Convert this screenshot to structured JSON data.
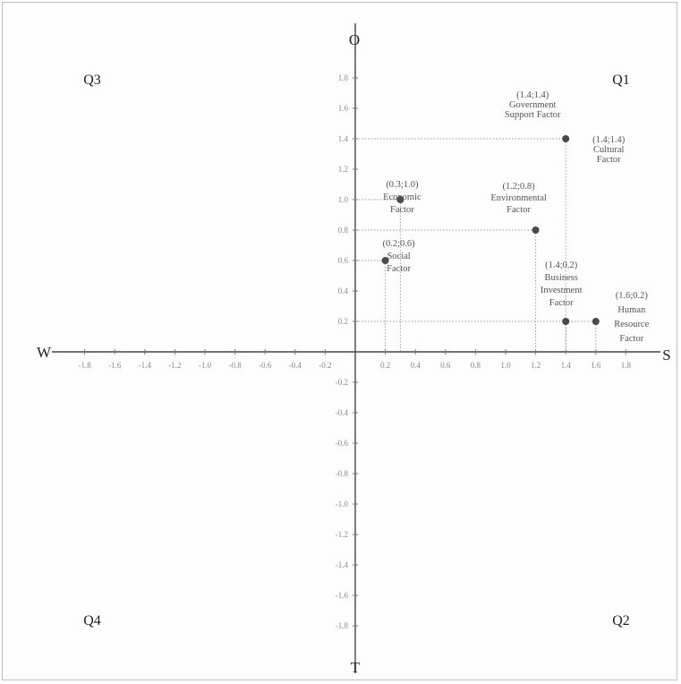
{
  "chart_data": {
    "type": "scatter",
    "title": "",
    "xlim": [
      -1.9,
      2.0
    ],
    "ylim": [
      -2.0,
      2.0
    ],
    "grid": false,
    "directions": {
      "top": "O",
      "bottom": "T",
      "left": "W",
      "right": "S"
    },
    "quadrants": {
      "q1": "Q1",
      "q2": "Q2",
      "q3": "Q3",
      "q4": "Q4"
    },
    "x_ticks": [
      {
        "v": -1.8,
        "t": "-1.8"
      },
      {
        "v": -1.6,
        "t": "-1.6"
      },
      {
        "v": -1.4,
        "t": "-1.4"
      },
      {
        "v": -1.2,
        "t": "-1.2"
      },
      {
        "v": -1.0,
        "t": "-1.0"
      },
      {
        "v": -0.8,
        "t": "-0.8"
      },
      {
        "v": -0.6,
        "t": "-0.6"
      },
      {
        "v": -0.4,
        "t": "-0.4"
      },
      {
        "v": -0.2,
        "t": "-0.2"
      },
      {
        "v": 0.2,
        "t": "0.2"
      },
      {
        "v": 0.4,
        "t": "0.4"
      },
      {
        "v": 0.6,
        "t": "0.6"
      },
      {
        "v": 0.8,
        "t": "0.8"
      },
      {
        "v": 1.0,
        "t": "1.0"
      },
      {
        "v": 1.2,
        "t": "1.2"
      },
      {
        "v": 1.4,
        "t": "1.4"
      },
      {
        "v": 1.6,
        "t": "1.6"
      },
      {
        "v": 1.8,
        "t": "1.8"
      }
    ],
    "y_ticks": [
      {
        "v": 1.8,
        "t": "1.8"
      },
      {
        "v": 1.6,
        "t": "1.6"
      },
      {
        "v": 1.4,
        "t": "1.4"
      },
      {
        "v": 1.2,
        "t": "1.2"
      },
      {
        "v": 1.0,
        "t": "1.0"
      },
      {
        "v": 0.8,
        "t": "0.8"
      },
      {
        "v": 0.6,
        "t": "0.6"
      },
      {
        "v": 0.4,
        "t": "0.4"
      },
      {
        "v": 0.2,
        "t": "0.2"
      },
      {
        "v": -0.2,
        "t": "-0.2"
      },
      {
        "v": -0.4,
        "t": "-0.4"
      },
      {
        "v": -0.6,
        "t": "-0.6"
      },
      {
        "v": -0.8,
        "t": "-0.8"
      },
      {
        "v": -1.0,
        "t": "-1.0"
      },
      {
        "v": -1.2,
        "t": "-1.2"
      },
      {
        "v": -1.4,
        "t": "-1.4"
      },
      {
        "v": -1.6,
        "t": "-1.6"
      },
      {
        "v": -1.8,
        "t": "-1.8"
      }
    ],
    "points": [
      {
        "x": 1.4,
        "y": 1.4,
        "name": "Government Support Factor",
        "label": [
          "(1.4;1.4)",
          "Government",
          "Support Factor"
        ]
      },
      {
        "x": 1.4,
        "y": 1.4,
        "name": "Cultural Factor",
        "label": [
          "(1.4;1.4)",
          "Cultural",
          "Factor"
        ]
      },
      {
        "x": 0.3,
        "y": 1.0,
        "name": "Economic Factor",
        "label": [
          "(0.3;1.0)",
          "Economic",
          "Factor"
        ]
      },
      {
        "x": 1.2,
        "y": 0.8,
        "name": "Environmental Factor",
        "label": [
          "(1.2;0.8)",
          "Environmental",
          "Factor"
        ]
      },
      {
        "x": 0.2,
        "y": 0.6,
        "name": "Social Factor",
        "label": [
          "(0.2;0.6)",
          "Social",
          "Factor"
        ]
      },
      {
        "x": 1.4,
        "y": 0.2,
        "name": "Business Investment Factor",
        "label": [
          "(1.4;0.2)",
          "Business",
          "Investment",
          "Factor"
        ]
      },
      {
        "x": 1.6,
        "y": 0.2,
        "name": "Human Resource Factor",
        "label": [
          "(1.6;0.2)",
          "Human",
          "Resource",
          "Factor"
        ]
      }
    ]
  }
}
